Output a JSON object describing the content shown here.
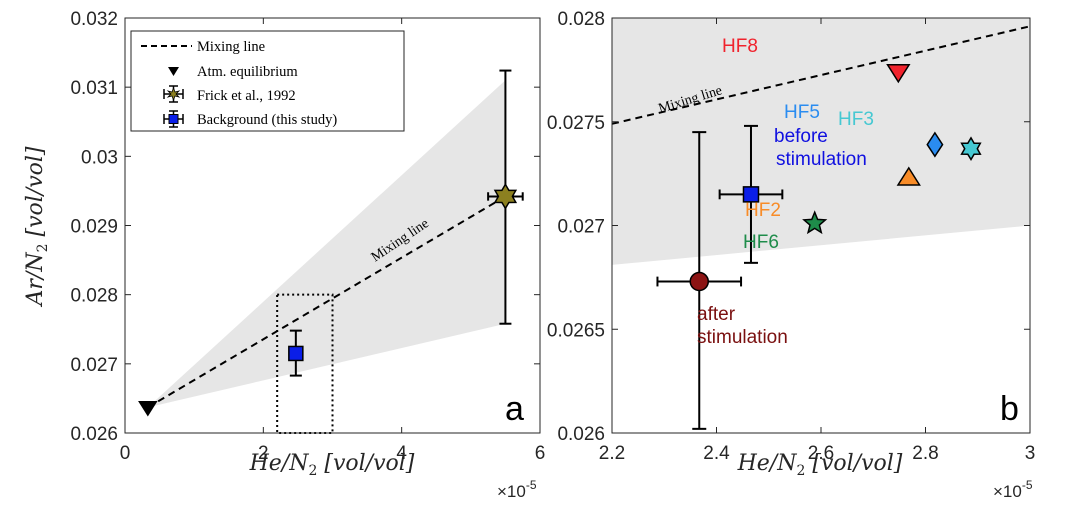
{
  "chart_data": [
    {
      "type": "scatter",
      "panel_label": "a",
      "xlabel": "He/N",
      "ylabel": "Ar/N",
      "x_exponent": "×10",
      "x_exponent_power": "-5",
      "xlim": [
        0,
        6
      ],
      "ylim": [
        0.026,
        0.032
      ],
      "xticks": [
        0,
        2,
        4,
        6
      ],
      "xtick_labels": [
        "0",
        "2",
        "4",
        "6"
      ],
      "yticks": [
        0.026,
        0.027,
        0.028,
        0.029,
        0.03,
        0.031,
        0.032
      ],
      "ytick_labels": [
        "0.026",
        "0.027",
        "0.028",
        "0.029",
        "0.03",
        "0.031",
        "0.032"
      ],
      "legend": [
        "Mixing line",
        "Atm. equilibrium",
        "Frick et al., 1992",
        "Background (this study)"
      ],
      "mixing_line_label": "Mixing line",
      "mixing_line": [
        [
          0.33,
          0.02637
        ],
        [
          5.5,
          0.02942
        ]
      ],
      "gray_band": [
        [
          0.33,
          0.02637
        ],
        [
          5.5,
          0.0311
        ],
        [
          5.5,
          0.02758
        ]
      ],
      "zoom_box": {
        "x": [
          2.2,
          3.0
        ],
        "y": [
          0.026,
          0.028
        ]
      },
      "series": [
        {
          "name": "Atm. equilibrium",
          "marker": "triangle-down",
          "color": "#000000",
          "x": 0.33,
          "y": 0.02637
        },
        {
          "name": "Frick et al., 1992",
          "marker": "hexagram",
          "color": "#8c8020",
          "x": 5.5,
          "y": 0.02942,
          "xerr": 0.25,
          "yerr": [
            0.02758,
            0.03124
          ]
        },
        {
          "name": "Background (this study)",
          "marker": "square",
          "color": "#0a1ee8",
          "x": 2.47,
          "y": 0.02715,
          "xerr": 0.06,
          "yerr": [
            0.02683,
            0.02748
          ]
        }
      ]
    },
    {
      "type": "scatter",
      "panel_label": "b",
      "xlabel": "He/N",
      "ylabel": "",
      "x_exponent": "×10",
      "x_exponent_power": "-5",
      "xlim": [
        2.2,
        3.0
      ],
      "ylim": [
        0.026,
        0.028
      ],
      "xticks": [
        2.2,
        2.4,
        2.6,
        2.8,
        3.0
      ],
      "xtick_labels": [
        "2.2",
        "2.4",
        "2.6",
        "2.8",
        "3"
      ],
      "yticks": [
        0.026,
        0.0265,
        0.027,
        0.0275,
        0.028
      ],
      "ytick_labels": [
        "0.026",
        "0.0265",
        "0.027",
        "0.0275",
        "0.028"
      ],
      "mixing_line_label": "Mixing line",
      "mixing_line": [
        [
          2.2,
          0.02749
        ],
        [
          3.0,
          0.02796
        ]
      ],
      "gray_band": [
        [
          2.2,
          0.02818
        ],
        [
          3.0,
          0.0285
        ],
        [
          3.0,
          0.027
        ],
        [
          2.2,
          0.02681
        ]
      ],
      "annotations": [
        {
          "text": "before",
          "color": "#1010e0"
        },
        {
          "text": "stimulation",
          "color": "#1010e0"
        },
        {
          "text": "after",
          "color": "#7a1010"
        },
        {
          "text": "stimulation",
          "color": "#7a1010"
        }
      ],
      "series": [
        {
          "name": "HF8",
          "marker": "triangle-down",
          "color": "#f0232d",
          "x": 2.748,
          "y": 0.02774
        },
        {
          "name": "HF5",
          "marker": "diamond",
          "color": "#2a8cf0",
          "x": 2.818,
          "y": 0.02739
        },
        {
          "name": "HF3",
          "marker": "hexagram",
          "color": "#46c8d2",
          "x": 2.887,
          "y": 0.02737
        },
        {
          "name": "HF2",
          "marker": "triangle-up",
          "color": "#f88c28",
          "x": 2.768,
          "y": 0.02723
        },
        {
          "name": "HF6",
          "marker": "pentagram",
          "color": "#1e8c4a",
          "x": 2.588,
          "y": 0.02701
        },
        {
          "name": "before stimulation",
          "marker": "square",
          "color": "#0a1ee8",
          "x": 2.466,
          "y": 0.02715,
          "xerr": 0.06,
          "yerr": [
            0.02682,
            0.02748
          ]
        },
        {
          "name": "after stimulation",
          "marker": "circle",
          "color": "#8c1414",
          "x": 2.367,
          "y": 0.02673,
          "xerr": 0.08,
          "yerr": [
            0.02602,
            0.02745
          ]
        }
      ]
    }
  ]
}
